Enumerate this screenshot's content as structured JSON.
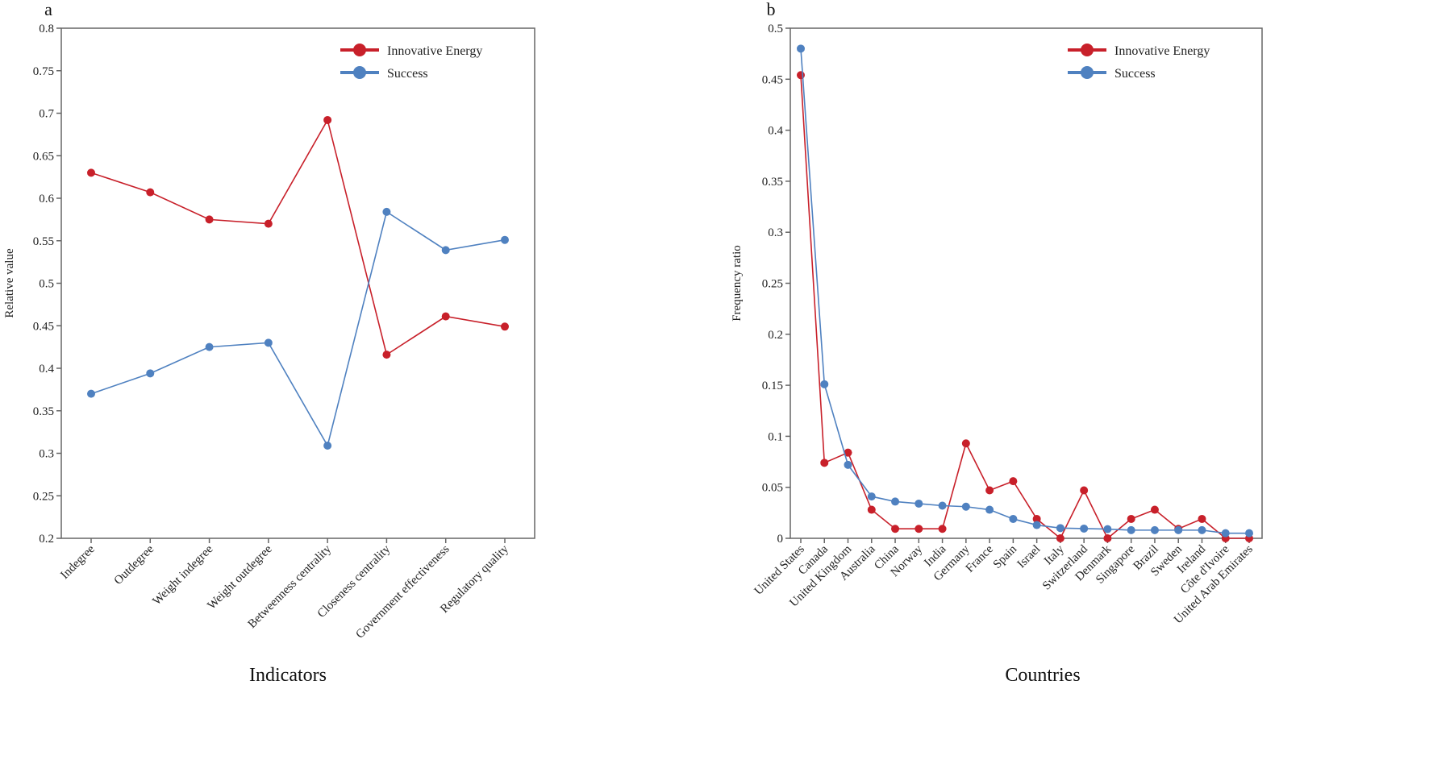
{
  "colors": {
    "innovative": "#c8202a",
    "success": "#4f81c0"
  },
  "chart_data": [
    {
      "type": "line",
      "panel_label": "a",
      "xlabel": "Indicators",
      "ylabel": "Relative value",
      "ylim": [
        0.2,
        0.8
      ],
      "yticks": [
        "0.2",
        "0.25",
        "0.3",
        "0.35",
        "0.4",
        "0.45",
        "0.5",
        "0.55",
        "0.6",
        "0.65",
        "0.7",
        "0.75",
        "0.8"
      ],
      "legend_position": "top-right",
      "categories": [
        "Indegree",
        "Outdegree",
        "Weight indegree",
        "Weight outdegree",
        "Betweenness centrality",
        "Closeness centrality",
        "Government effectiveness",
        "Regulatory quality"
      ],
      "series": [
        {
          "name": "Innovative Energy",
          "values": [
            0.63,
            0.607,
            0.575,
            0.57,
            0.692,
            0.416,
            0.461,
            0.449
          ]
        },
        {
          "name": "Success",
          "values": [
            0.37,
            0.394,
            0.425,
            0.43,
            0.309,
            0.584,
            0.539,
            0.551
          ]
        }
      ]
    },
    {
      "type": "line",
      "panel_label": "b",
      "xlabel": "Countries",
      "ylabel": "Frequency ratio",
      "ylim": [
        0,
        0.5
      ],
      "yticks": [
        "0",
        "0.05",
        "0.1",
        "0.15",
        "0.2",
        "0.25",
        "0.3",
        "0.35",
        "0.4",
        "0.45",
        "0.5"
      ],
      "legend_position": "top-right",
      "categories": [
        "United States",
        "Canada",
        "United Kingdom",
        "Australia",
        "China",
        "Norway",
        "India",
        "Germany",
        "France",
        "Spain",
        "Israel",
        "Italy",
        "Switzerland",
        "Denmark",
        "Singapore",
        "Brazil",
        "Sweden",
        "Ireland",
        "Côte d'Ivoire",
        "United Arab Emirates"
      ],
      "series": [
        {
          "name": "Innovative Energy",
          "values": [
            0.454,
            0.074,
            0.084,
            0.028,
            0.0093,
            0.0093,
            0.0093,
            0.093,
            0.047,
            0.056,
            0.019,
            0,
            0.047,
            0,
            0.019,
            0.028,
            0.0093,
            0.019,
            0,
            0
          ]
        },
        {
          "name": "Success",
          "values": [
            0.48,
            0.151,
            0.072,
            0.041,
            0.036,
            0.034,
            0.032,
            0.031,
            0.028,
            0.019,
            0.013,
            0.01,
            0.0095,
            0.009,
            0.008,
            0.008,
            0.008,
            0.008,
            0.005,
            0.005
          ]
        }
      ]
    }
  ]
}
